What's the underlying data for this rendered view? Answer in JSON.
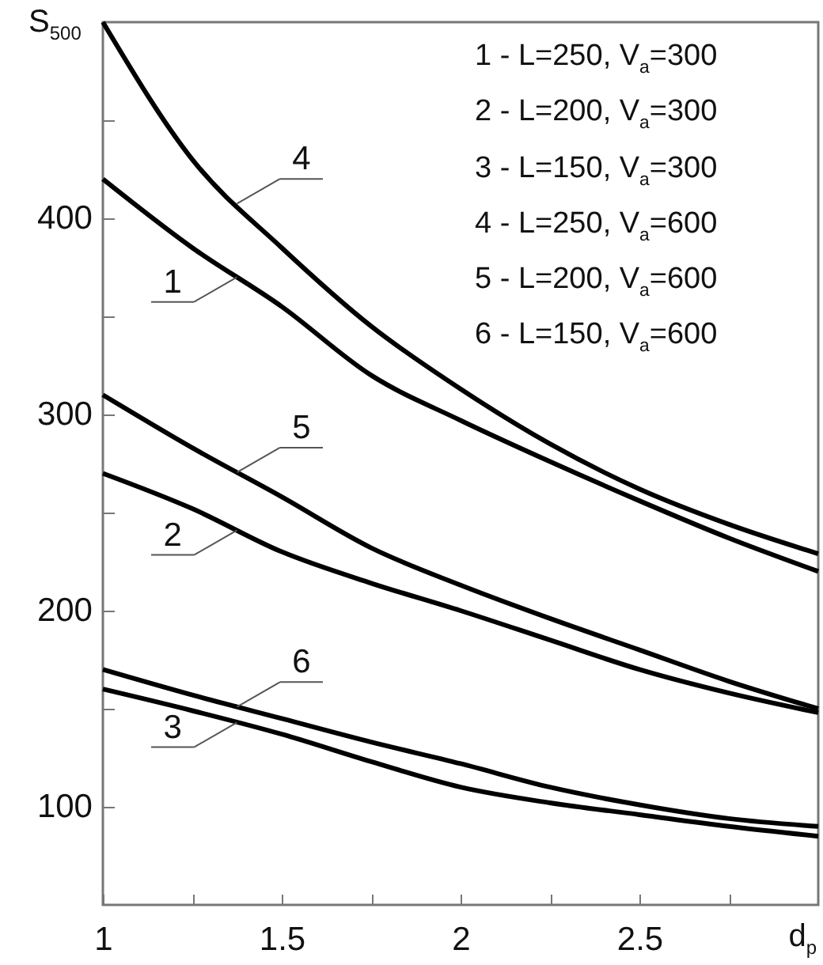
{
  "chart_data": {
    "type": "line",
    "xlabel": "d$_{p}$",
    "ylabel": "S$_{500}$",
    "x": [
      1,
      1.25,
      1.5,
      1.75,
      2,
      2.25,
      2.5,
      2.75,
      3
    ],
    "xlim": [
      1,
      3
    ],
    "ylim": [
      50,
      500
    ],
    "xticks": [
      1,
      {
        "value": 1.25,
        "label": null
      },
      1.5,
      {
        "value": 1.75,
        "label": null
      },
      2,
      {
        "value": 2.25,
        "label": null
      },
      2.5,
      {
        "value": 2.75,
        "label": null
      }
    ],
    "yticks": [
      100,
      {
        "value": 150,
        "label": null
      },
      200,
      {
        "value": 250,
        "label": null
      },
      300,
      {
        "value": 350,
        "label": null
      },
      400,
      {
        "value": 450,
        "label": null
      }
    ],
    "grid": false,
    "marker": "none",
    "line_style": "solid",
    "annotations": [
      "1 - L=250,  V$_{a}$=300",
      "2 - L=200,  V$_{a}$=300",
      "3 - L=150,  V$_{a}$=300",
      "4 - L=250,  V$_{a}$=600",
      "5 - L=200,  V$_{a}$=600",
      "6 - L=150,  V$_{a}$=600"
    ],
    "series": [
      {
        "name": "1",
        "color": "#000000",
        "values": [
          420,
          385,
          355,
          320,
          297,
          276,
          256,
          237,
          220
        ]
      },
      {
        "name": "2",
        "color": "#000000",
        "values": [
          270,
          252,
          230,
          214,
          200,
          185,
          170,
          158,
          148
        ]
      },
      {
        "name": "3",
        "color": "#000000",
        "values": [
          160,
          149,
          137,
          123,
          110,
          102,
          96,
          90,
          85
        ]
      },
      {
        "name": "4",
        "color": "#000000",
        "values": [
          500,
          430,
          385,
          345,
          313,
          285,
          262,
          244,
          229
        ]
      },
      {
        "name": "5",
        "color": "#000000",
        "values": [
          310,
          283,
          258,
          232,
          213,
          196,
          180,
          164,
          150
        ]
      },
      {
        "name": "6",
        "color": "#000000",
        "values": [
          170,
          157,
          145,
          133,
          122,
          110,
          101,
          94,
          90
        ]
      }
    ]
  }
}
